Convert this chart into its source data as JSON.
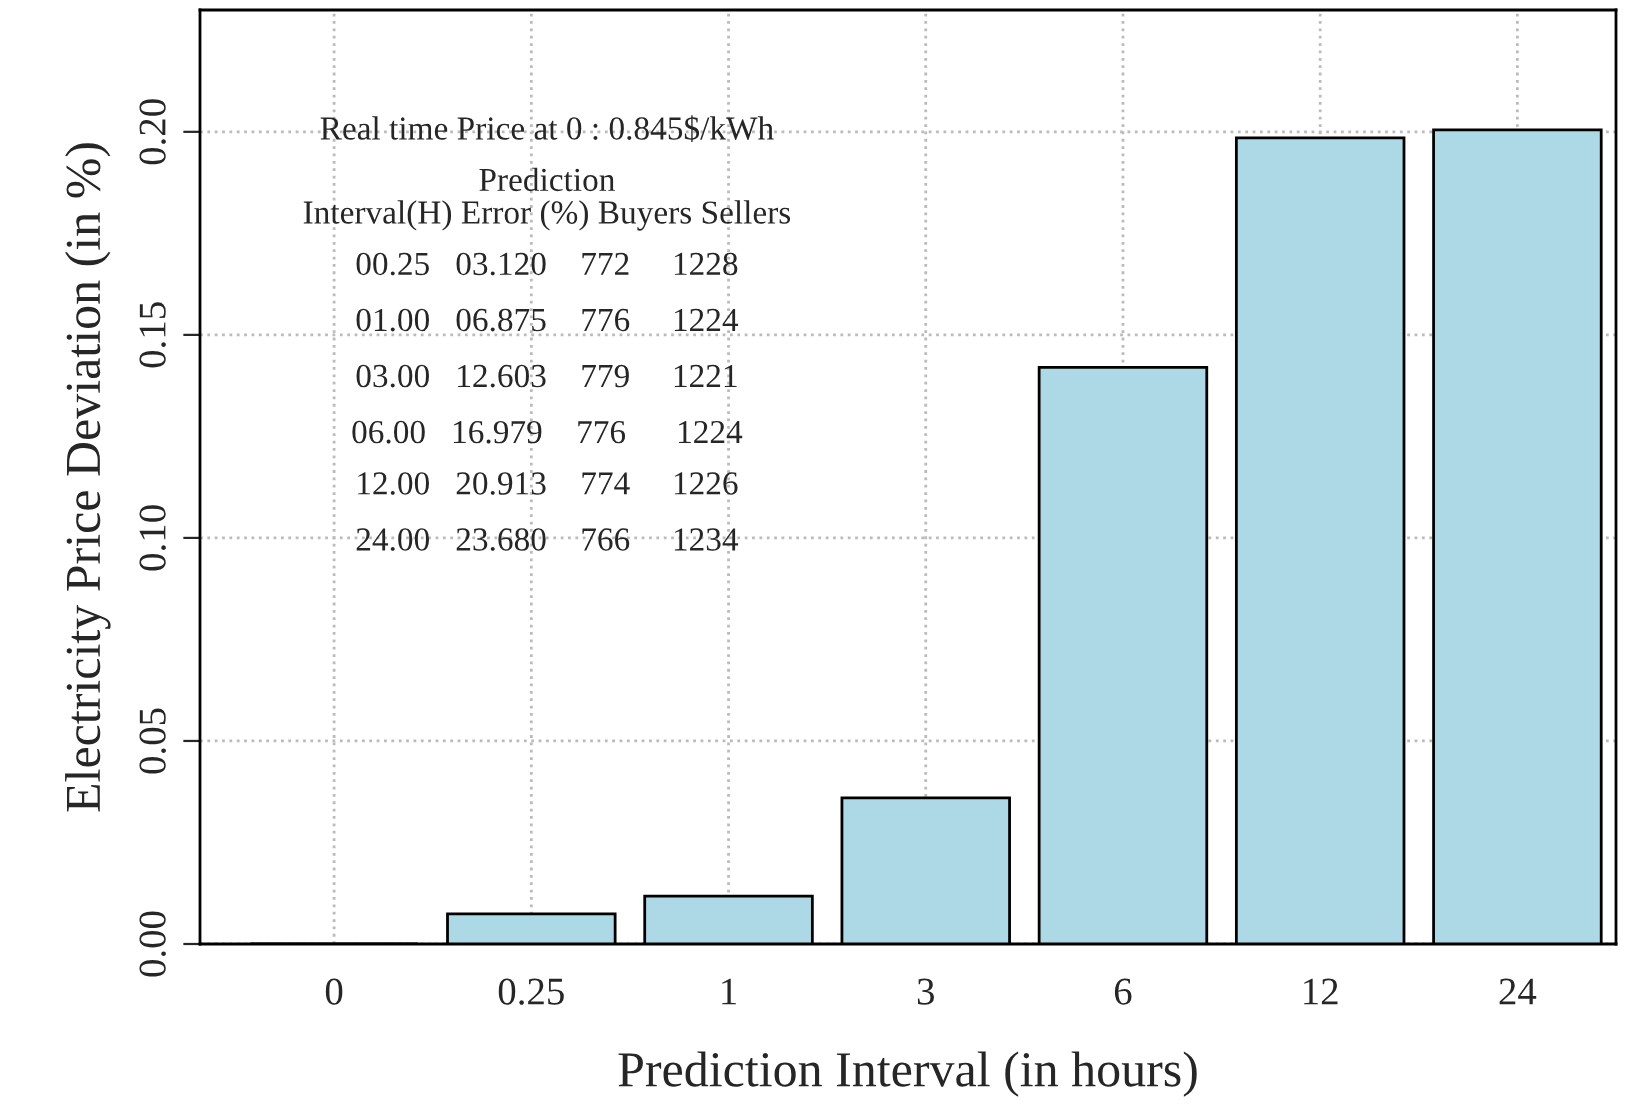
{
  "chart_data": {
    "type": "bar",
    "xlabel": "Prediction Interval (in hours)",
    "ylabel": "Electricity Price Deviation (in %)",
    "categories": [
      "0",
      "0.25",
      "1",
      "3",
      "6",
      "12",
      "24"
    ],
    "values": [
      0,
      0.0074,
      0.0118,
      0.036,
      0.142,
      0.1985,
      0.2005
    ],
    "color": "#add8e6",
    "ylim": [
      0,
      0.23
    ],
    "yticks": [
      {
        "value": 0,
        "label": "0.00"
      },
      {
        "value": 0.05,
        "label": "0.05"
      },
      {
        "value": 0.1,
        "label": "0.10"
      },
      {
        "value": 0.15,
        "label": "0.15"
      },
      {
        "value": 0.2,
        "label": "0.20"
      }
    ],
    "grid": true,
    "annotations": [
      "Real time Price at 0 : 0.845$/kWh",
      "Prediction",
      "Interval(H) Error (%) Buyers Sellers",
      "00.25   03.120    772     1228",
      "01.00   06.875    776     1224",
      "03.00   12.603    779     1221",
      "06.00   16.979    776      1224",
      "12.00   20.913    774     1226",
      "24.00   23.680    766     1234"
    ]
  }
}
